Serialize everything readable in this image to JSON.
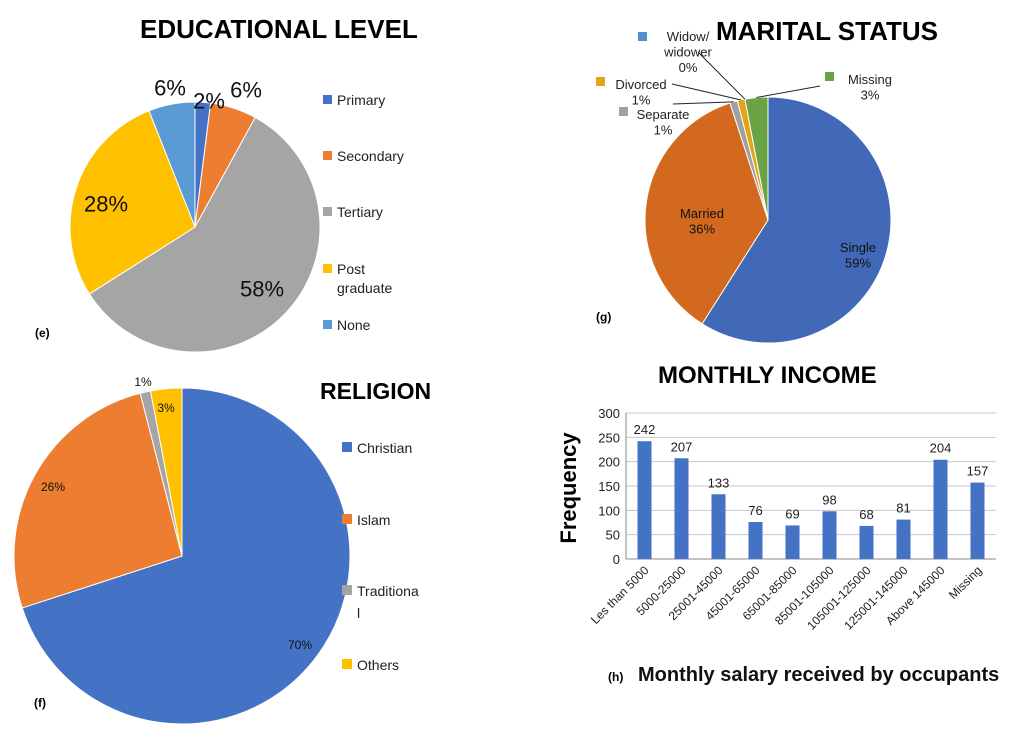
{
  "chart_data": [
    {
      "id": "education",
      "type": "pie",
      "panel_label": "(e)",
      "title": "EDUCATIONAL LEVEL",
      "legend_position": "right",
      "categories": [
        "Primary",
        "Secondary",
        "Tertiary",
        "Post graduate",
        "None"
      ],
      "values": [
        2,
        6,
        58,
        28,
        6
      ],
      "colors": [
        "#4472C4",
        "#ED7D31",
        "#A5A5A5",
        "#FFC000",
        "#5B9BD5"
      ],
      "data_labels": [
        "2%",
        "6%",
        "58%",
        "28%",
        "6%"
      ]
    },
    {
      "id": "marital",
      "type": "pie",
      "panel_label": "(g)",
      "title": "MARITAL STATUS",
      "legend_position": "none",
      "categories": [
        "Single",
        "Married",
        "Separate",
        "Divorced",
        "Widow/ widower",
        "Missing"
      ],
      "values": [
        59,
        36,
        1,
        1,
        0,
        3
      ],
      "colors": [
        "#4169B8",
        "#D2691E",
        "#A0A0A0",
        "#E3A518",
        "#4F8FCB",
        "#69A343"
      ],
      "data_labels": [
        "59%",
        "36%",
        "1%",
        "1%",
        "0%",
        "3%"
      ]
    },
    {
      "id": "religion",
      "type": "pie",
      "panel_label": "(f)",
      "title": "RELIGION",
      "legend_position": "right",
      "categories": [
        "Christian",
        "Islam",
        "Traditional",
        "Others"
      ],
      "values": [
        70,
        26,
        1,
        3
      ],
      "colors": [
        "#4472C4",
        "#ED7D31",
        "#A5A5A5",
        "#FFC000"
      ],
      "data_labels": [
        "70%",
        "26%",
        "1%",
        "3%"
      ]
    },
    {
      "id": "income",
      "type": "bar",
      "panel_label": "(h)",
      "title": "MONTHLY INCOME",
      "xlabel": "Monthly salary received by occupants",
      "ylabel": "Frequency",
      "ylim": [
        0,
        300
      ],
      "yticks": [
        0,
        50,
        100,
        150,
        200,
        250,
        300
      ],
      "grid": true,
      "bar_color": "#4472C4",
      "categories": [
        "Les than 5000",
        "5000-25000",
        "25001-45000",
        "45001-65000",
        "65001-85000",
        "85001-105000",
        "105001-125000",
        "125001-145000",
        "Above 145000",
        "Missing"
      ],
      "values": [
        242,
        207,
        133,
        76,
        69,
        98,
        68,
        81,
        204,
        157
      ]
    }
  ],
  "legend_display": {
    "education": [
      "Primary",
      "Secondary",
      "Tertiary",
      "Post\ngraduate",
      "None"
    ],
    "religion": [
      "Christian",
      "Islam",
      "Traditiona\nl",
      "Others"
    ]
  },
  "marital_labels": {
    "single": "Single\n59%",
    "married": "Married\n36%",
    "separate": "Separate\n1%",
    "divorced": "Divorced\n1%",
    "widow": "Widow/\nwidower\n0%",
    "missing": "Missing\n3%"
  }
}
